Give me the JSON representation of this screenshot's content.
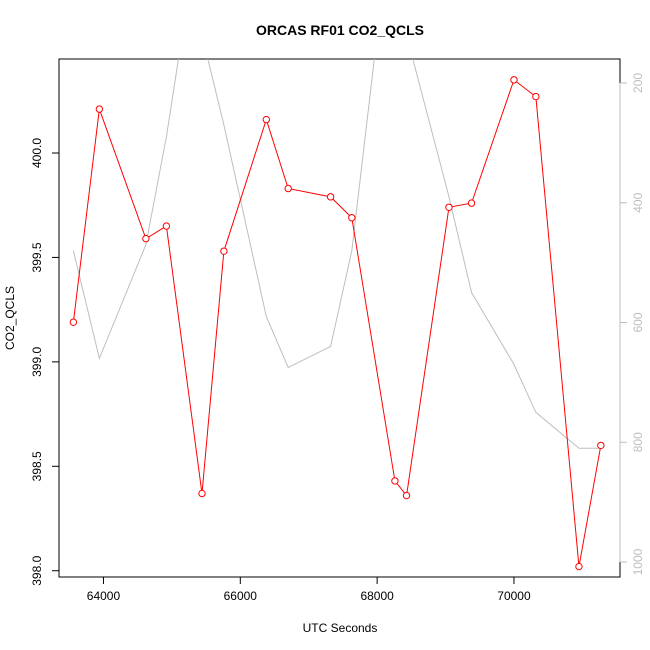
{
  "chart_data": {
    "type": "line",
    "title": "ORCAS RF01 CO2_QCLS",
    "xlabel": "UTC Seconds",
    "ylabel": "CO2_QCLS",
    "xlim": [
      63350,
      71550
    ],
    "ylim": [
      397.97,
      400.45
    ],
    "y2lim": [
      1025,
      160
    ],
    "x_ticks": [
      64000,
      66000,
      68000,
      70000
    ],
    "y_ticks": [
      398.0,
      398.5,
      399.0,
      399.5,
      400.0
    ],
    "y2_ticks": [
      200,
      400,
      600,
      800,
      1000
    ],
    "x_tick_labels": [
      "64000",
      "66000",
      "68000",
      "70000"
    ],
    "y_tick_labels": [
      "398.0",
      "398.5",
      "399.0",
      "399.5",
      "400.0"
    ],
    "y2_tick_labels": [
      "200",
      "400",
      "600",
      "800",
      "1000"
    ],
    "series": [
      {
        "color": "#ff0000",
        "marker": "open-circle",
        "axis": "left",
        "points": [
          [
            63560,
            399.19
          ],
          [
            63940,
            400.21
          ],
          [
            64620,
            399.59
          ],
          [
            64920,
            399.65
          ],
          [
            65440,
            398.37
          ],
          [
            65760,
            399.53
          ],
          [
            66380,
            400.16
          ],
          [
            66700,
            399.83
          ],
          [
            67320,
            399.79
          ],
          [
            67630,
            399.69
          ],
          [
            68260,
            398.43
          ],
          [
            68430,
            398.36
          ],
          [
            69050,
            399.74
          ],
          [
            69380,
            399.76
          ],
          [
            70000,
            400.35
          ],
          [
            70320,
            400.27
          ],
          [
            70950,
            398.02
          ],
          [
            71270,
            398.6
          ]
        ]
      },
      {
        "color": "#bebebe",
        "axis": "right",
        "points": [
          [
            63560,
            480
          ],
          [
            63940,
            660
          ],
          [
            64620,
            470
          ],
          [
            64920,
            290
          ],
          [
            65150,
            120
          ],
          [
            65440,
            120
          ],
          [
            65760,
            270
          ],
          [
            66380,
            590
          ],
          [
            66700,
            675
          ],
          [
            67320,
            640
          ],
          [
            67630,
            480
          ],
          [
            68000,
            120
          ],
          [
            68430,
            120
          ],
          [
            69050,
            390
          ],
          [
            69380,
            550
          ],
          [
            70000,
            670
          ],
          [
            70320,
            750
          ],
          [
            70950,
            810
          ],
          [
            71270,
            810
          ]
        ]
      }
    ]
  }
}
